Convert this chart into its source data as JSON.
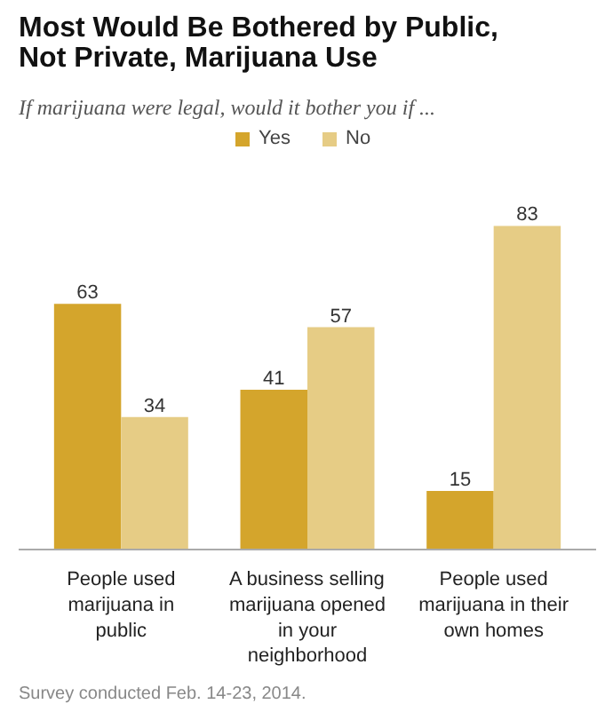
{
  "chart_data": {
    "type": "bar",
    "title": "Most Would Be Bothered by Public, Not Private, Marijuana Use",
    "subtitle": "If marijuana were legal, would it bother you if ...",
    "categories": [
      "People used marijuana in public",
      "A business selling marijuana opened in your neighborhood",
      "People used marijuana in their own homes"
    ],
    "series": [
      {
        "name": "Yes",
        "color": "#d4a52c",
        "values": [
          63,
          41,
          15
        ]
      },
      {
        "name": "No",
        "color": "#e6cc85",
        "values": [
          34,
          57,
          83
        ]
      }
    ],
    "data_labels": true,
    "legend": "top",
    "grid": false,
    "annotations": [
      "Survey conducted Feb. 14-23, 2014."
    ]
  }
}
